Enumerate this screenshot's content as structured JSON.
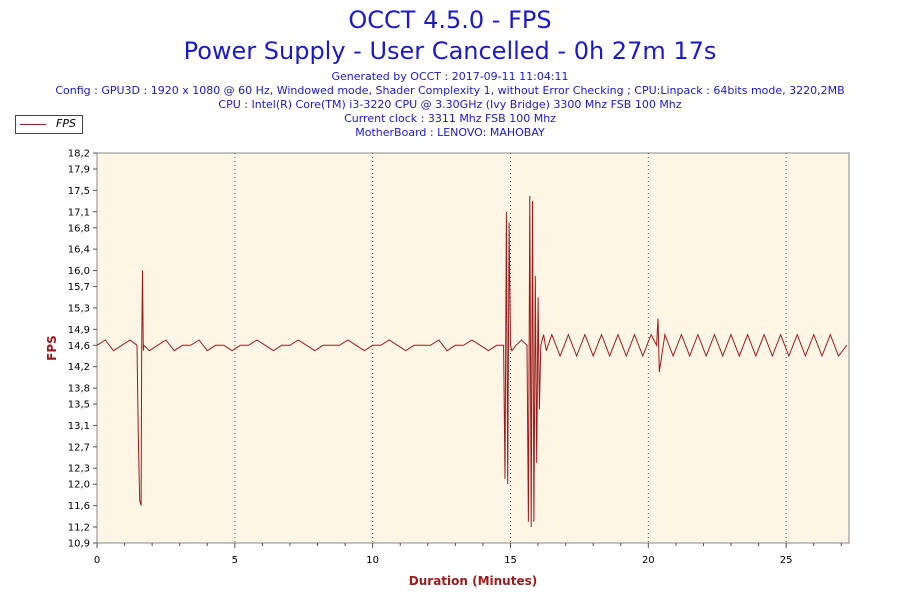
{
  "header": {
    "title": "OCCT 4.5.0 - FPS",
    "subtitle": "Power Supply - User Cancelled - 0h 27m 17s",
    "info_lines": [
      "Generated by OCCT : 2017-09-11 11:04:11",
      "Config : GPU3D : 1920 x 1080 @ 60 Hz, Windowed mode, Shader Complexity 1, without Error Checking ; CPU:Linpack : 64bits mode, 3220,2MB",
      "CPU : Intel(R) Core(TM) i3-3220 CPU @ 3.30GHz (Ivy Bridge) 3300 Mhz FSB 100 Mhz",
      "Current clock : 3311 Mhz FSB 100 Mhz",
      "MotherBoard : LENOVO: MAHOBAY"
    ]
  },
  "colors": {
    "series": "#9b1b1b",
    "header_text": "#1a1acc",
    "plot_background": "#fdf5e6",
    "axis_label": "#9b1b1b"
  },
  "chart_data": {
    "type": "line",
    "title": "OCCT 4.5.0 - FPS",
    "subtitle": "Power Supply - User Cancelled - 0h 27m 17s",
    "xlabel": "Duration (Minutes)",
    "ylabel": "FPS",
    "xlim": [
      0,
      27.28
    ],
    "ylim": [
      10.9,
      18.2
    ],
    "x_ticks": [
      0,
      5,
      10,
      15,
      20,
      25
    ],
    "x_tick_labels": [
      "0",
      "5",
      "10",
      "15",
      "20",
      "25"
    ],
    "y_ticks": [
      10.9,
      11.2,
      11.6,
      12.0,
      12.3,
      12.7,
      13.1,
      13.5,
      13.8,
      14.2,
      14.6,
      14.9,
      15.3,
      15.7,
      16.0,
      16.4,
      16.8,
      17.1,
      17.5,
      17.9,
      18.2
    ],
    "y_tick_labels": [
      "10,9",
      "11,2",
      "11,6",
      "12,0",
      "12,3",
      "12,7",
      "13,1",
      "13,5",
      "13,8",
      "14,2",
      "14,6",
      "14,9",
      "15,3",
      "15,7",
      "16,0",
      "16,4",
      "16,8",
      "17,1",
      "17,5",
      "17,9",
      "18,2"
    ],
    "grid": "vertical dotted at x ticks",
    "legend": {
      "position": "top-left",
      "entries": [
        "FPS"
      ]
    },
    "series": [
      {
        "name": "FPS",
        "x": [
          0.0,
          0.3,
          0.6,
          0.9,
          1.2,
          1.45,
          1.5,
          1.55,
          1.6,
          1.62,
          1.65,
          1.68,
          1.7,
          1.9,
          2.2,
          2.5,
          2.8,
          3.1,
          3.4,
          3.7,
          4.0,
          4.3,
          4.6,
          4.9,
          5.2,
          5.5,
          5.8,
          6.1,
          6.4,
          6.7,
          7.0,
          7.3,
          7.6,
          7.9,
          8.2,
          8.5,
          8.8,
          9.1,
          9.4,
          9.7,
          10.0,
          10.3,
          10.6,
          10.9,
          11.2,
          11.5,
          11.8,
          12.1,
          12.4,
          12.7,
          13.0,
          13.3,
          13.6,
          13.9,
          14.2,
          14.5,
          14.75,
          14.8,
          14.85,
          14.9,
          14.95,
          15.0,
          15.05,
          15.2,
          15.4,
          15.6,
          15.65,
          15.7,
          15.75,
          15.8,
          15.85,
          15.9,
          15.95,
          16.0,
          16.05,
          16.1,
          16.2,
          16.3,
          16.5,
          16.8,
          17.1,
          17.4,
          17.7,
          18.0,
          18.3,
          18.6,
          18.9,
          19.2,
          19.5,
          19.8,
          20.1,
          20.3,
          20.35,
          20.4,
          20.6,
          20.9,
          21.2,
          21.5,
          21.8,
          22.1,
          22.4,
          22.7,
          23.0,
          23.3,
          23.6,
          23.9,
          24.2,
          24.5,
          24.8,
          25.1,
          25.4,
          25.7,
          26.0,
          26.3,
          26.6,
          26.9,
          27.2
        ],
        "y": [
          14.6,
          14.7,
          14.5,
          14.6,
          14.7,
          14.6,
          12.9,
          11.7,
          11.6,
          14.6,
          16.0,
          14.5,
          14.6,
          14.5,
          14.6,
          14.7,
          14.5,
          14.6,
          14.6,
          14.7,
          14.5,
          14.6,
          14.6,
          14.5,
          14.6,
          14.6,
          14.7,
          14.6,
          14.5,
          14.6,
          14.6,
          14.7,
          14.6,
          14.5,
          14.6,
          14.6,
          14.6,
          14.7,
          14.6,
          14.5,
          14.6,
          14.6,
          14.7,
          14.6,
          14.5,
          14.6,
          14.6,
          14.6,
          14.7,
          14.5,
          14.6,
          14.6,
          14.7,
          14.6,
          14.5,
          14.6,
          14.6,
          12.1,
          17.1,
          12.0,
          16.9,
          14.6,
          14.5,
          14.6,
          14.7,
          14.6,
          11.3,
          17.4,
          11.2,
          17.3,
          11.3,
          15.9,
          12.4,
          15.5,
          13.4,
          14.6,
          14.8,
          14.5,
          14.8,
          14.4,
          14.8,
          14.4,
          14.8,
          14.4,
          14.8,
          14.4,
          14.8,
          14.4,
          14.8,
          14.4,
          14.8,
          14.6,
          15.1,
          14.1,
          14.8,
          14.4,
          14.8,
          14.4,
          14.8,
          14.4,
          14.8,
          14.4,
          14.8,
          14.4,
          14.8,
          14.4,
          14.8,
          14.4,
          14.8,
          14.4,
          14.8,
          14.4,
          14.8,
          14.4,
          14.8,
          14.4,
          14.6
        ]
      }
    ]
  }
}
